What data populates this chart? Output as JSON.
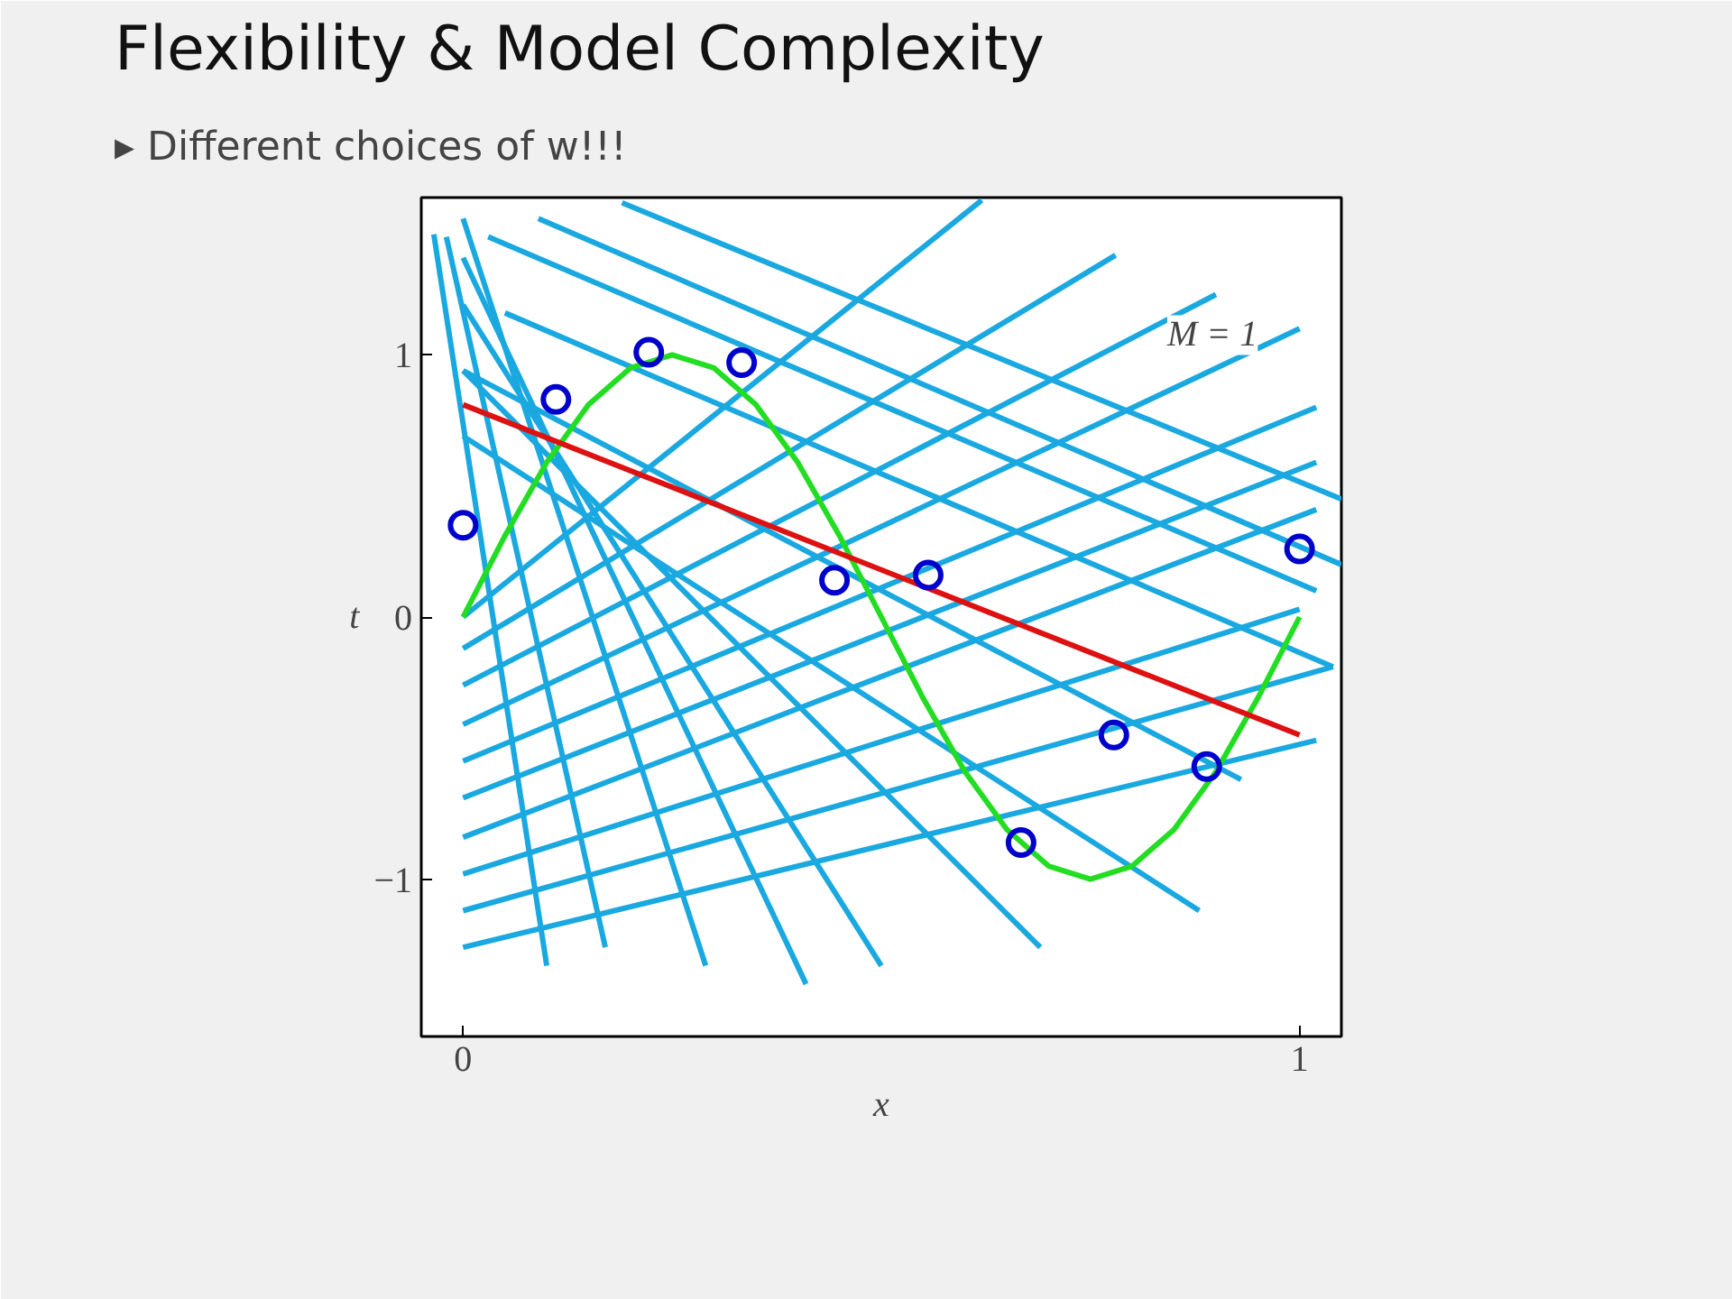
{
  "chart_data": {
    "type": "line",
    "title": "Flexibility & Model Complexity",
    "subtitle": "▸  Different choices of w!!!",
    "xlabel": "x",
    "ylabel": "t",
    "xlim": [
      -0.05,
      1.05
    ],
    "ylim": [
      -1.6,
      1.6
    ],
    "xticks": [
      0,
      1
    ],
    "yticks": [
      -1,
      0,
      1
    ],
    "grid": false,
    "annotations": [
      "M = 1"
    ],
    "series": [
      {
        "color": "#1aa8e0",
        "x": [
          -0.035,
          0.1
        ],
        "values": [
          1.46,
          -1.33
        ]
      },
      {
        "color": "#1aa8e0",
        "x": [
          -0.02,
          0.17
        ],
        "values": [
          1.45,
          -1.26
        ]
      },
      {
        "color": "#1aa8e0",
        "x": [
          0,
          0.29
        ],
        "values": [
          1.52,
          -1.33
        ]
      },
      {
        "color": "#1aa8e0",
        "x": [
          0,
          0.41
        ],
        "values": [
          1.37,
          -1.4
        ]
      },
      {
        "color": "#1aa8e0",
        "x": [
          0,
          0.5
        ],
        "values": [
          1.19,
          -1.33
        ]
      },
      {
        "color": "#1aa8e0",
        "x": [
          0,
          0.69
        ],
        "values": [
          0.94,
          -1.26
        ]
      },
      {
        "color": "#1aa8e0",
        "x": [
          0,
          0.88
        ],
        "values": [
          0.69,
          -1.12
        ]
      },
      {
        "color": "#1aa8e0",
        "x": [
          0.19,
          1.05
        ],
        "values": [
          1.58,
          0.45
        ]
      },
      {
        "color": "#1aa8e0",
        "x": [
          0.09,
          1.05
        ],
        "values": [
          1.52,
          0.2
        ]
      },
      {
        "color": "#1aa8e0",
        "x": [
          0.03,
          1.02
        ],
        "values": [
          1.45,
          0.1
        ]
      },
      {
        "color": "#1aa8e0",
        "x": [
          0.05,
          1.04
        ],
        "values": [
          1.16,
          -0.19
        ]
      },
      {
        "color": "#1aa8e0",
        "x": [
          0,
          0.93
        ],
        "values": [
          0.94,
          -0.62
        ]
      },
      {
        "color": "#1aa8e0",
        "x": [
          0,
          0.62
        ],
        "values": [
          0.0,
          1.59
        ]
      },
      {
        "color": "#1aa8e0",
        "x": [
          0,
          0.78
        ],
        "values": [
          -0.12,
          1.38
        ]
      },
      {
        "color": "#1aa8e0",
        "x": [
          0,
          0.9
        ],
        "values": [
          -0.26,
          1.23
        ]
      },
      {
        "color": "#1aa8e0",
        "x": [
          0,
          1.0
        ],
        "values": [
          -0.41,
          1.1
        ]
      },
      {
        "color": "#1aa8e0",
        "x": [
          0,
          1.02
        ],
        "values": [
          -0.55,
          0.8
        ]
      },
      {
        "color": "#1aa8e0",
        "x": [
          0,
          1.02
        ],
        "values": [
          -0.69,
          0.59
        ]
      },
      {
        "color": "#1aa8e0",
        "x": [
          0,
          1.02
        ],
        "values": [
          -0.84,
          0.41
        ]
      },
      {
        "color": "#1aa8e0",
        "x": [
          0,
          1.0
        ],
        "values": [
          -0.98,
          0.03
        ]
      },
      {
        "color": "#1aa8e0",
        "x": [
          0,
          1.04
        ],
        "values": [
          -1.12,
          -0.19
        ]
      },
      {
        "color": "#1aa8e0",
        "x": [
          0,
          1.02
        ],
        "values": [
          -1.26,
          -0.47
        ]
      },
      {
        "color": "#22dd22",
        "x": [
          0,
          0.05,
          0.1,
          0.15,
          0.2,
          0.25,
          0.3,
          0.35,
          0.4,
          0.45,
          0.5,
          0.55,
          0.6,
          0.65,
          0.7,
          0.75,
          0.8,
          0.85,
          0.9,
          0.95,
          1
        ],
        "values": [
          0,
          0.31,
          0.59,
          0.81,
          0.95,
          1,
          0.95,
          0.81,
          0.59,
          0.31,
          0,
          -0.31,
          -0.59,
          -0.81,
          -0.95,
          -1,
          -0.95,
          -0.81,
          -0.59,
          -0.31,
          0
        ]
      },
      {
        "color": "#dd1111",
        "x": [
          0,
          1
        ],
        "values": [
          0.81,
          -0.45
        ]
      },
      {
        "type": "scatter",
        "marker": "circle",
        "color": "#0000cc",
        "x": [
          0,
          0.111,
          0.222,
          0.333,
          0.444,
          0.556,
          0.667,
          0.778,
          0.889,
          1
        ],
        "values": [
          0.35,
          0.83,
          1.01,
          0.97,
          0.14,
          0.16,
          -0.86,
          -0.45,
          -0.57,
          0.26
        ]
      }
    ]
  }
}
